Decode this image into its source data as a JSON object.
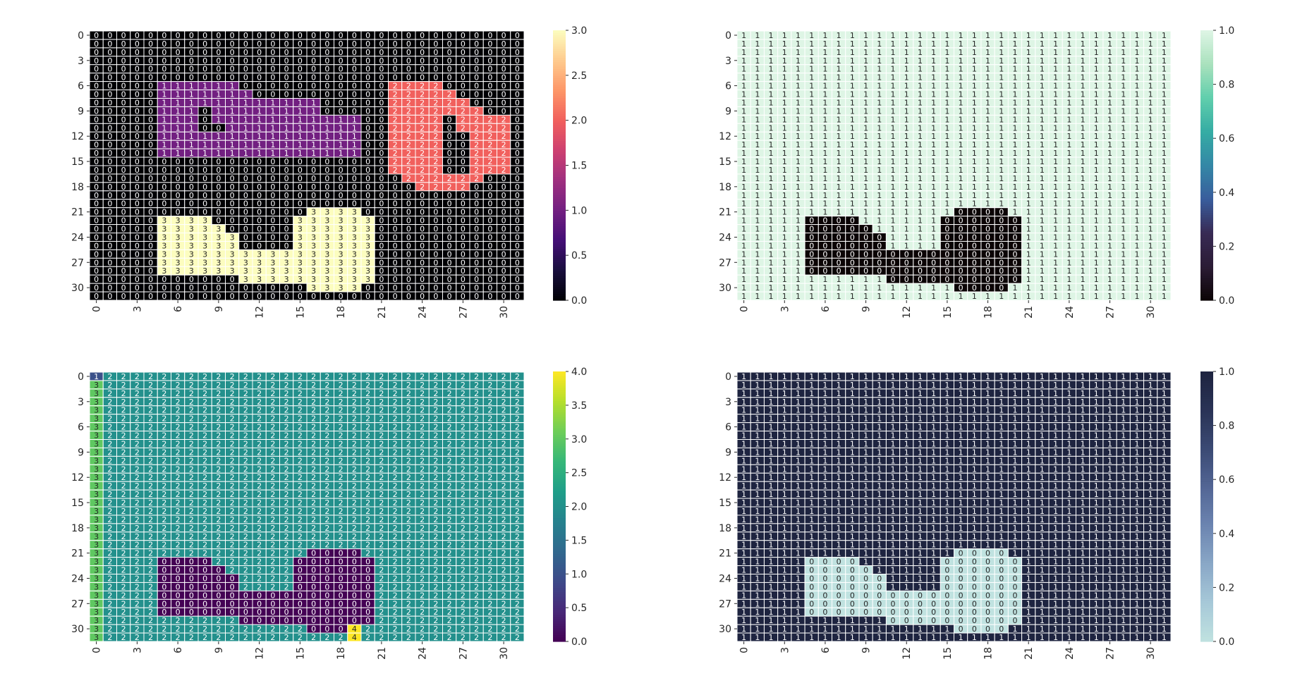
{
  "chart_data": [
    {
      "type": "heatmap",
      "colormap": "magma",
      "annotated": true,
      "vmin": 0,
      "vmax": 3,
      "colorbar_ticks": [
        "0.0",
        "0.5",
        "1.0",
        "1.5",
        "2.0",
        "2.5",
        "3.0"
      ],
      "x_ticks": [
        "0",
        "3",
        "6",
        "9",
        "12",
        "15",
        "18",
        "21",
        "24",
        "27",
        "30"
      ],
      "y_ticks": [
        "0",
        "3",
        "6",
        "9",
        "12",
        "15",
        "18",
        "21",
        "24",
        "27",
        "30"
      ],
      "rows": [
        "00000000000000000000000000000000",
        "00000000000000000000000000000000",
        "00000000000000000000000000000000",
        "00000000000000000000000000000000",
        "00000000000000000000000000000000",
        "00000000000000000000000000000000",
        "00000111111000000000002222000000",
        "00000111111100000000002222200000",
        "00000111111111111000002222220000",
        "00000111011111111000002222222000",
        "00000111011111111111002222022220",
        "00000111001111111111002222022220",
        "00000111111111111111002222002220",
        "00000111111111111111002222002220",
        "00000111111111111111002222002220",
        "00000000000000000000002222002220",
        "00000000000000000000002222002220",
        "00000000000000000000000222222000",
        "00000000000000000000000022220000",
        "00000000000000000000000000000000",
        "00000000000000000000000000000000",
        "00000000000000003333000000000000",
        "00000333300000033333300000000000",
        "00000333330000033333300000000000",
        "00000333333000033333300000000000",
        "00000333333000033333300000000000",
        "00000333333333333333300000000000",
        "00000333333333333333300000000000",
        "00000333333333333333300000000000",
        "00000000000333333333300000000000",
        "00000000000000003333000000000000",
        "00000000000000000000000000000000"
      ]
    },
    {
      "type": "heatmap",
      "colormap": "mako",
      "annotated": true,
      "vmin": 0,
      "vmax": 1,
      "colorbar_ticks": [
        "0.0",
        "0.2",
        "0.4",
        "0.6",
        "0.8",
        "1.0"
      ],
      "x_ticks": [
        "0",
        "3",
        "6",
        "9",
        "12",
        "15",
        "18",
        "21",
        "24",
        "27",
        "30"
      ],
      "y_ticks": [
        "0",
        "3",
        "6",
        "9",
        "12",
        "15",
        "18",
        "21",
        "24",
        "27",
        "30"
      ],
      "rows": [
        "11111111111111111111111111111111",
        "11111111111111111111111111111111",
        "11111111111111111111111111111111",
        "11111111111111111111111111111111",
        "11111111111111111111111111111111",
        "11111111111111111111111111111111",
        "11111111111111111111111111111111",
        "11111111111111111111111111111111",
        "11111111111111111111111111111111",
        "11111111111111111111111111111111",
        "11111111111111111111111111111111",
        "11111111111111111111111111111111",
        "11111111111111111111111111111111",
        "11111111111111111111111111111111",
        "11111111111111111111111111111111",
        "11111111111111111111111111111111",
        "11111111111111111111111111111111",
        "11111111111111111111111111111111",
        "11111111111111111111111111111111",
        "11111111111111111111111111111111",
        "11111111111111111111111111111111",
        "11111111111111110000111111111111",
        "11111000011111100000011111111111",
        "11111000001111100000011111111111",
        "11111000000111100000011111111111",
        "11111000000111100000011111111111",
        "11111000000000000000011111111111",
        "11111000000000000000011111111111",
        "11111000000000000000011111111111",
        "11111111111000000000011111111111",
        "11111111111111110000111111111111",
        "11111111111111111111111111111111"
      ]
    },
    {
      "type": "heatmap",
      "colormap": "viridis",
      "annotated": true,
      "vmin": 0,
      "vmax": 4,
      "colorbar_ticks": [
        "0.0",
        "0.5",
        "1.0",
        "1.5",
        "2.0",
        "2.5",
        "3.0",
        "3.5",
        "4.0"
      ],
      "x_ticks": [
        "0",
        "3",
        "6",
        "9",
        "12",
        "15",
        "18",
        "21",
        "24",
        "27",
        "30"
      ],
      "y_ticks": [
        "0",
        "3",
        "6",
        "9",
        "12",
        "15",
        "18",
        "21",
        "24",
        "27",
        "30"
      ],
      "rows": [
        "12222222222222222222222222222222",
        "32222222222222222222222222222222",
        "32222222222222222222222222222222",
        "32222222222222222222222222222222",
        "32222222222222222222222222222222",
        "32222222222222222222222222222222",
        "32222222222222222222222222222222",
        "32222222222222222222222222222222",
        "32222222222222222222222222222222",
        "32222222222222222222222222222222",
        "32222222222222222222222222222222",
        "32222222222222222222222222222222",
        "32222222222222222222222222222222",
        "32222222222222222222222222222222",
        "32222222222222222222222222222222",
        "32222222222222222222222222222222",
        "32222222222222222222222222222222",
        "32222222222222222222222222222222",
        "32222222222222222222222222222222",
        "32222222222222222222222222222222",
        "32222222222222222222222222222222",
        "32222222222222220000222222222222",
        "32222000022222200000022222222222",
        "32222000002222200000022222222222",
        "32222000000222200000022222222222",
        "32222000000222200000022222222222",
        "32222000000000000000022222222222",
        "32222000000000000000022222222222",
        "32222000000000000000022222222222",
        "32222222222000000000022222222222",
        "32222222222222220004222222222222",
        "32222222222222222224222222222222"
      ]
    },
    {
      "type": "heatmap",
      "colormap": "blue_reversed",
      "annotated": true,
      "vmin": 0,
      "vmax": 1,
      "colorbar_ticks": [
        "0.0",
        "0.2",
        "0.4",
        "0.6",
        "0.8",
        "1.0"
      ],
      "x_ticks": [
        "0",
        "3",
        "6",
        "9",
        "12",
        "15",
        "18",
        "21",
        "24",
        "27",
        "30"
      ],
      "y_ticks": [
        "0",
        "3",
        "6",
        "9",
        "12",
        "15",
        "18",
        "21",
        "24",
        "27",
        "30"
      ],
      "rows": [
        "11111111111111111111111111111111",
        "11111111111111111111111111111111",
        "11111111111111111111111111111111",
        "11111111111111111111111111111111",
        "11111111111111111111111111111111",
        "11111111111111111111111111111111",
        "11111111111111111111111111111111",
        "11111111111111111111111111111111",
        "11111111111111111111111111111111",
        "11111111111111111111111111111111",
        "11111111111111111111111111111111",
        "11111111111111111111111111111111",
        "11111111111111111111111111111111",
        "11111111111111111111111111111111",
        "11111111111111111111111111111111",
        "11111111111111111111111111111111",
        "11111111111111111111111111111111",
        "11111111111111111111111111111111",
        "11111111111111111111111111111111",
        "11111111111111111111111111111111",
        "11111111111111111111111111111111",
        "11111111111111110000111111111111",
        "11111000011111100000011111111111",
        "11111000001111100000011111111111",
        "11111000000111100000011111111111",
        "11111000000111100000011111111111",
        "11111000000000000000011111111111",
        "11111000000000000000011111111111",
        "11111000000000000000011111111111",
        "11111111111000000000011111111111",
        "11111111111111110000111111111111",
        "11111111111111111111111111111111"
      ]
    }
  ]
}
